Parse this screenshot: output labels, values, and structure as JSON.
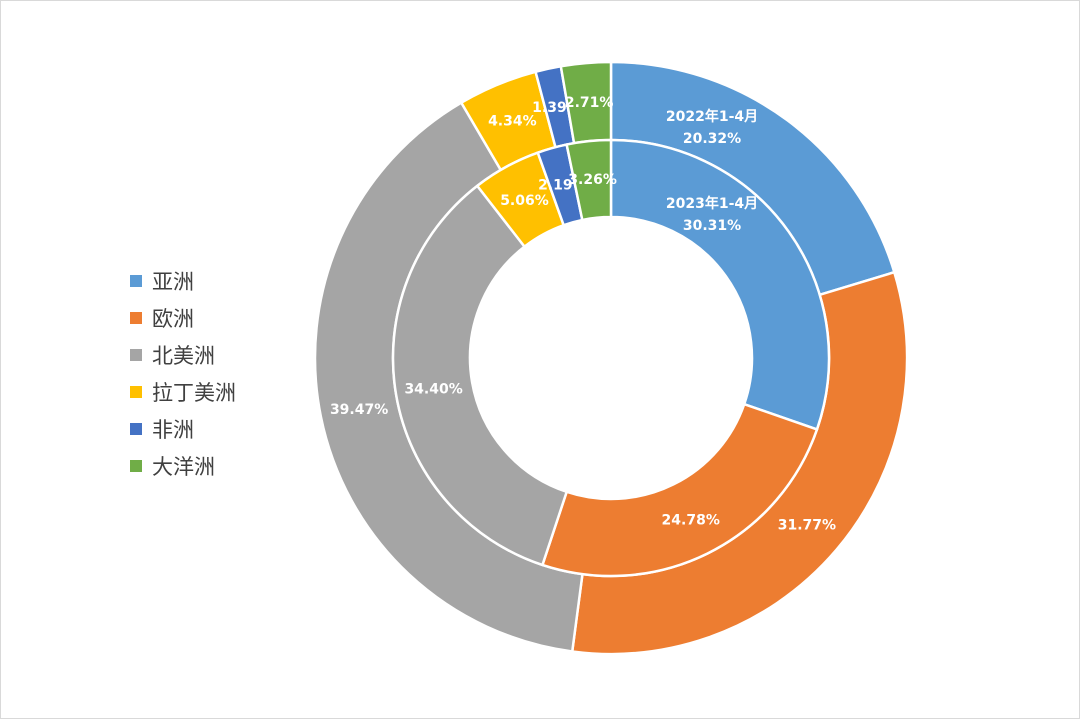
{
  "chart_data": {
    "type": "pie",
    "subtype": "donut",
    "categories": [
      "亚洲",
      "欧洲",
      "北美洲",
      "拉丁美洲",
      "非洲",
      "大洋洲"
    ],
    "colors": [
      "#5b9bd5",
      "#ed7d31",
      "#a5a5a5",
      "#ffc000",
      "#4472c4",
      "#70ad47"
    ],
    "legend_position": "left",
    "series": [
      {
        "name": "2022年1-4月",
        "ring": "outer",
        "values": [
          20.32,
          31.77,
          39.47,
          4.34,
          1.39,
          2.71
        ],
        "labels": [
          "2022年1-4月\n20.32%",
          "31.77%",
          "39.47%",
          "4.34%",
          "1.39%",
          "2.71%"
        ]
      },
      {
        "name": "2023年1-4月",
        "ring": "inner",
        "values": [
          30.31,
          24.78,
          34.4,
          5.06,
          2.19,
          3.26
        ],
        "labels": [
          "2023年1-4月\n30.31%",
          "24.78%",
          "34.40%",
          "5.06%",
          "2.19%",
          "3.26%"
        ]
      }
    ]
  }
}
